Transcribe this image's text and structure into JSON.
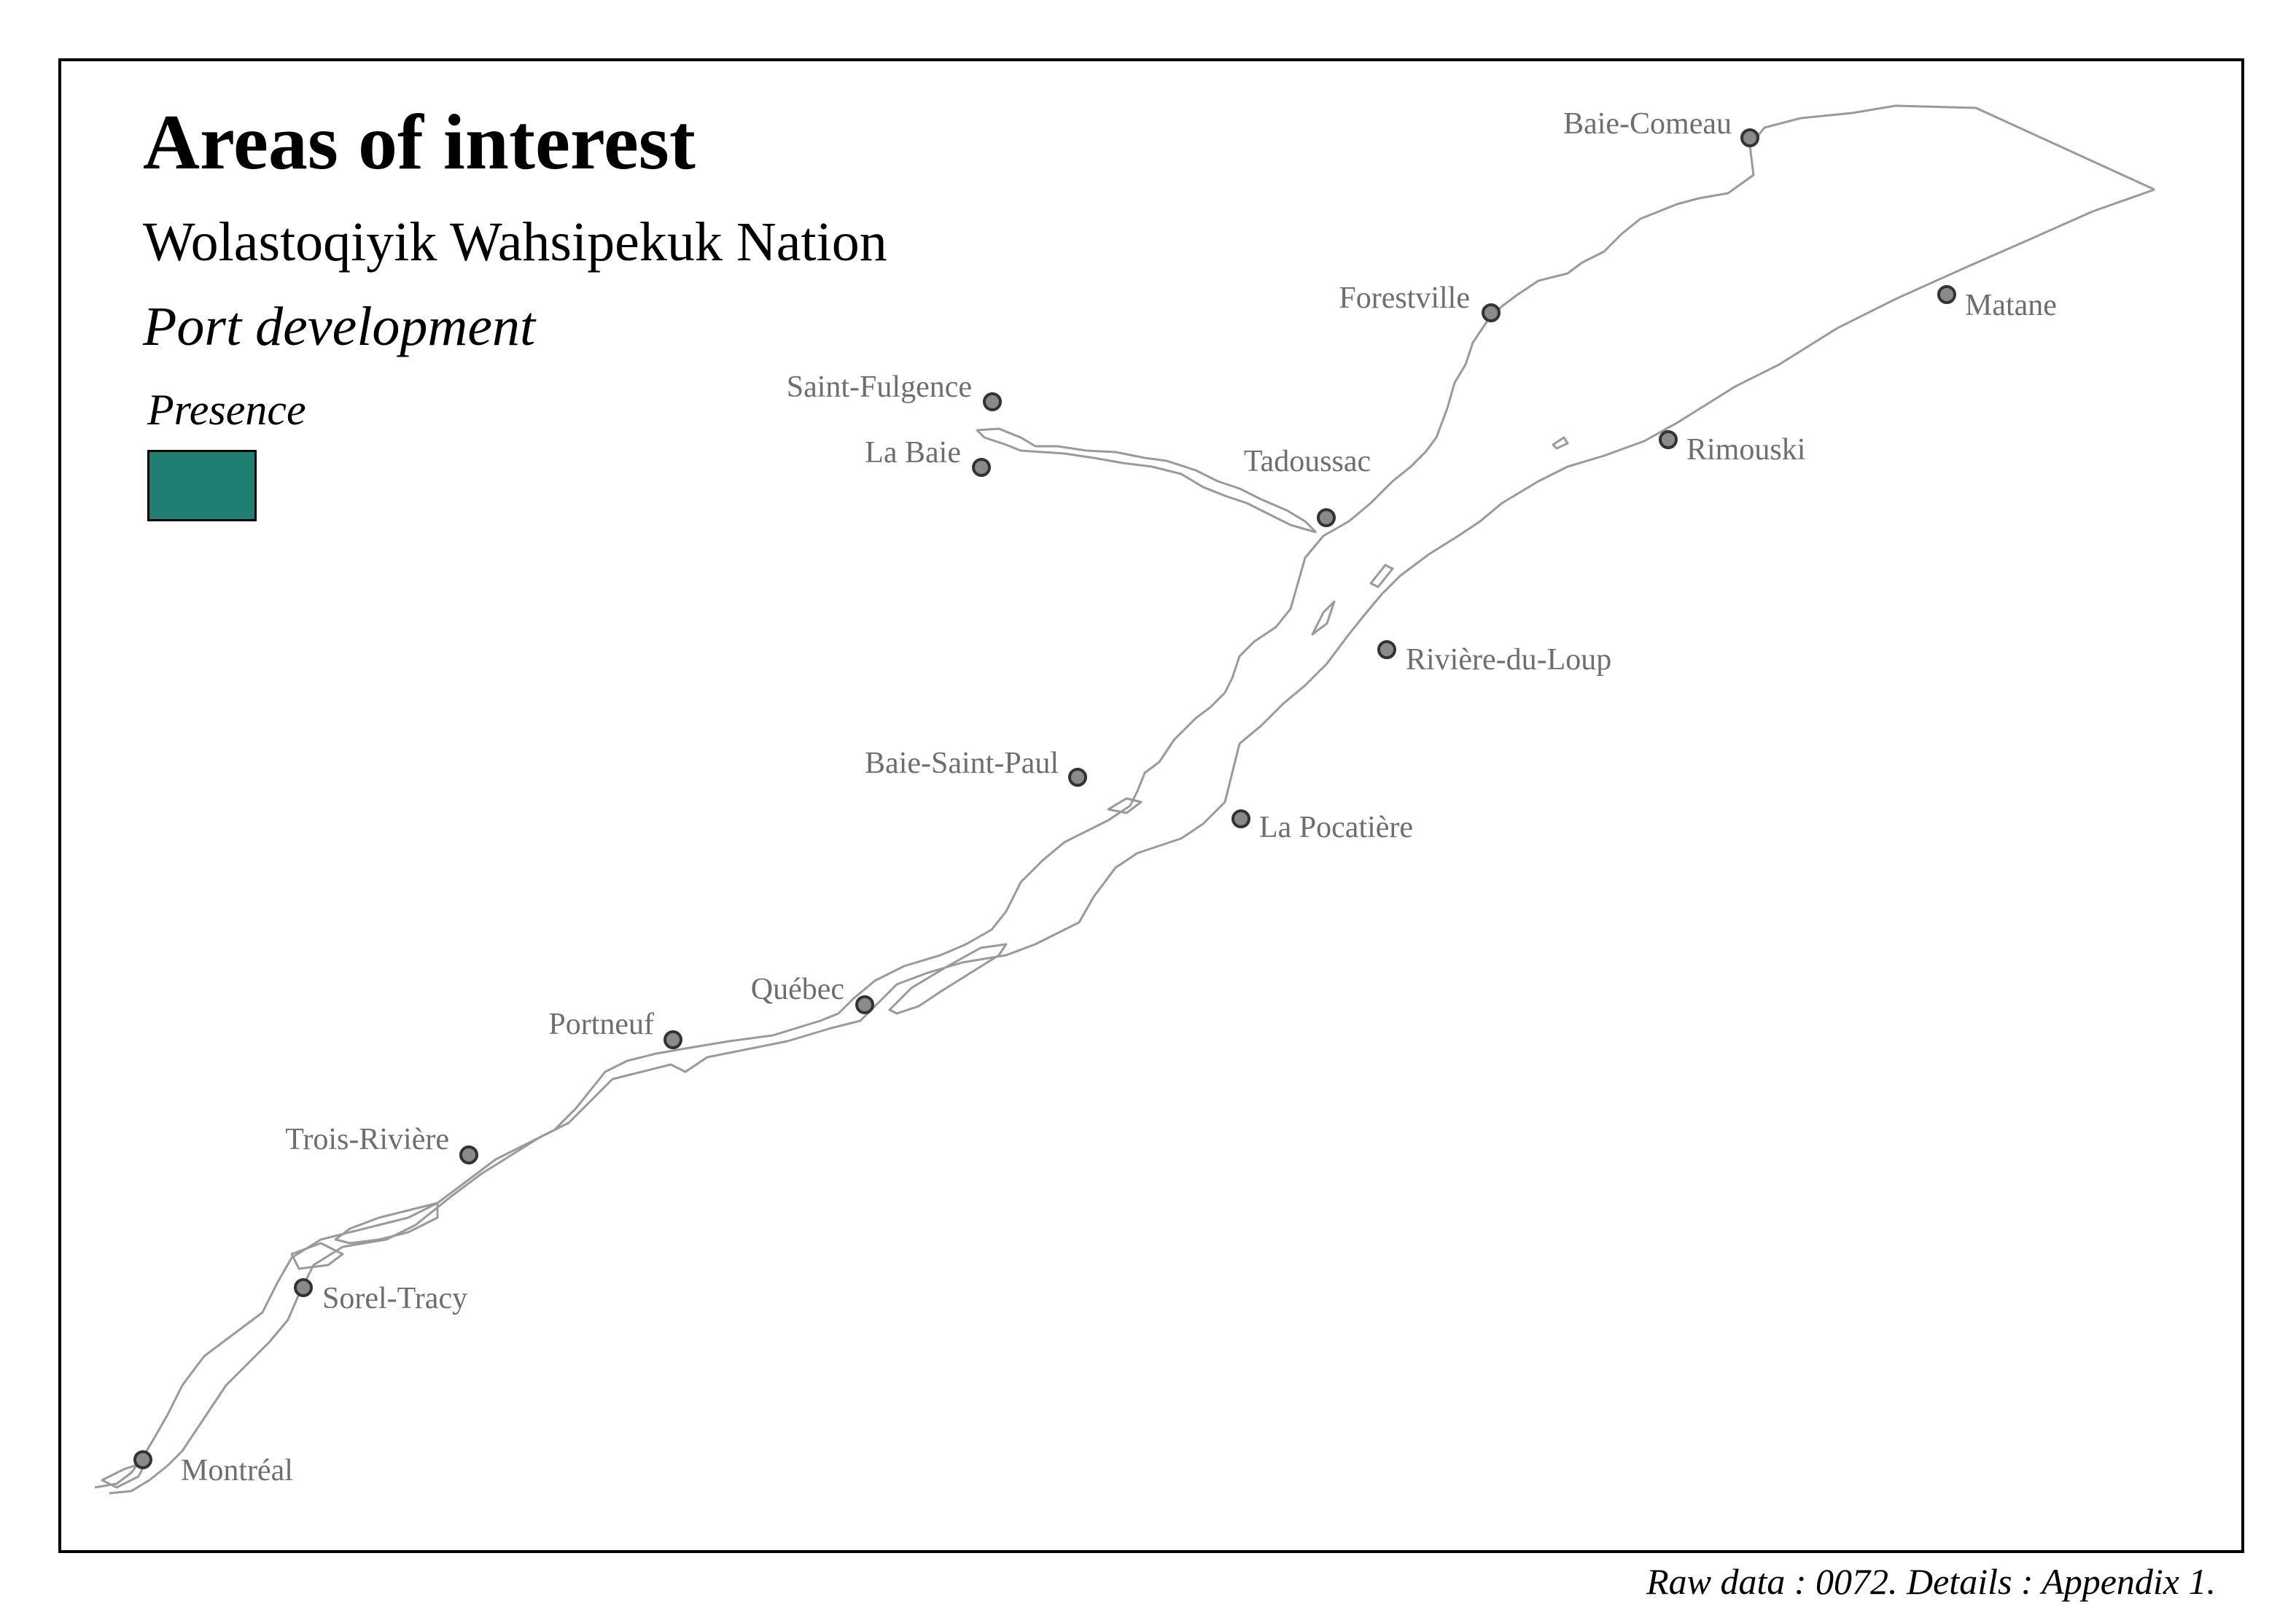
{
  "map": {
    "title": "Areas of interest",
    "subtitle": "Wolastoqiyik Wahsipekuk Nation",
    "theme": "Port development",
    "legend": {
      "title": "Presence",
      "color": "#217e73"
    },
    "source_note": "Raw data : 0072. Details : Appendix 1.",
    "colors": {
      "coastline": "#9a9a9a",
      "city_marker_fill": "#8a8a8a",
      "city_label": "#6e6e6e"
    },
    "cities": [
      {
        "name": "Baie-Comeau"
      },
      {
        "name": "Forestville"
      },
      {
        "name": "Matane"
      },
      {
        "name": "Saint-Fulgence"
      },
      {
        "name": "La Baie"
      },
      {
        "name": "Tadoussac"
      },
      {
        "name": "Rimouski"
      },
      {
        "name": "Rivière-du-Loup"
      },
      {
        "name": "Baie-Saint-Paul"
      },
      {
        "name": "La Pocatière"
      },
      {
        "name": "Québec"
      },
      {
        "name": "Portneuf"
      },
      {
        "name": "Trois-Rivière"
      },
      {
        "name": "Sorel-Tracy"
      },
      {
        "name": "Montréal"
      }
    ]
  }
}
